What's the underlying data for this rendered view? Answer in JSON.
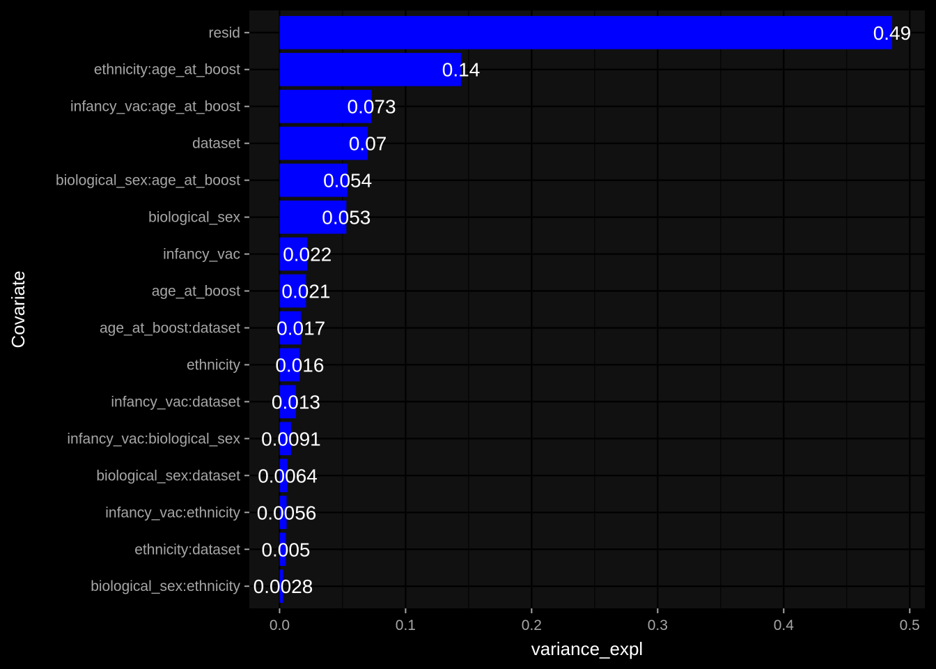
{
  "chart_data": {
    "type": "bar",
    "orientation": "horizontal",
    "xlabel": "variance_expl",
    "ylabel": "Covariate",
    "xlim": [
      -0.024,
      0.512
    ],
    "x_ticks": [
      0.0,
      0.1,
      0.2,
      0.3,
      0.4,
      0.5
    ],
    "x_tick_labels": [
      "0.0",
      "0.1",
      "0.2",
      "0.3",
      "0.4",
      "0.5"
    ],
    "grid": true,
    "categories": [
      "resid",
      "ethnicity:age_at_boost",
      "infancy_vac:age_at_boost",
      "dataset",
      "biological_sex:age_at_boost",
      "biological_sex",
      "infancy_vac",
      "age_at_boost",
      "age_at_boost:dataset",
      "ethnicity",
      "infancy_vac:dataset",
      "infancy_vac:biological_sex",
      "biological_sex:dataset",
      "infancy_vac:ethnicity",
      "ethnicity:dataset",
      "biological_sex:ethnicity"
    ],
    "values": [
      0.486,
      0.144,
      0.073,
      0.07,
      0.054,
      0.053,
      0.022,
      0.021,
      0.017,
      0.016,
      0.013,
      0.0091,
      0.0064,
      0.0056,
      0.005,
      0.0028
    ],
    "value_labels": [
      "0.49",
      "0.14",
      "0.073",
      "0.07",
      "0.054",
      "0.053",
      "0.022",
      "0.021",
      "0.017",
      "0.016",
      "0.013",
      "0.0091",
      "0.0064",
      "0.0056",
      "0.005",
      "0.0028"
    ],
    "colors": {
      "bar": "#0000ff",
      "panel": "#111111",
      "background": "#000000",
      "grid": "#000000",
      "tick_text": "#a6a6a6",
      "title_text": "#ffffff",
      "label_text": "#ffffff"
    }
  }
}
